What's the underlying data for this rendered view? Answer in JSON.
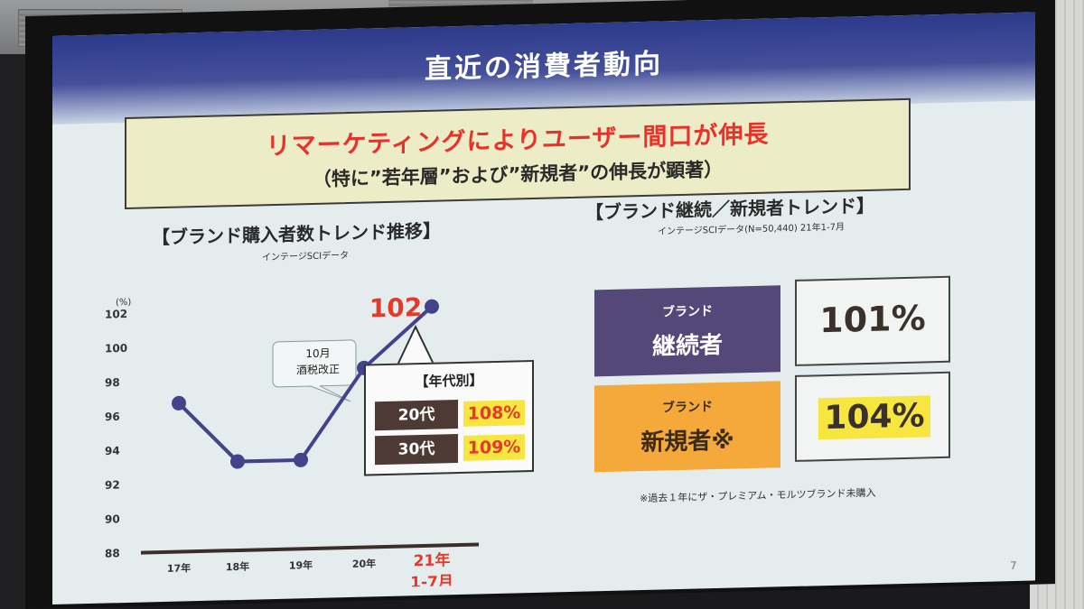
{
  "slide": {
    "title": "直近の消費者動向",
    "banner": {
      "main": "リマーケティングによりユーザー間口が伸長",
      "sub": "（特に”若年層”および”新規者”の伸長が顕著）"
    },
    "left": {
      "heading": "【ブランド購入者数トレンド推移】",
      "source": "インテージSCIデータ"
    },
    "right": {
      "heading": "【ブランド継続／新規者トレンド】",
      "source": "インテージSCIデータ(N=50,440) 21年1-7月",
      "continuing": {
        "small": "ブランド",
        "big": "継続者",
        "value": "101%"
      },
      "new": {
        "small": "ブランド",
        "big": "新規者※",
        "value": "104%"
      },
      "footnote": "※過去１年にザ・プレミアム・モルツブランド未購入"
    },
    "callout": {
      "title": "【年代別】",
      "rows": [
        {
          "age": "20代",
          "value": "108%"
        },
        {
          "age": "30代",
          "value": "109%"
        }
      ]
    },
    "page_number": "7"
  },
  "chart_data": {
    "type": "line",
    "unit_label": "(%)",
    "categories": [
      "17年",
      "18年",
      "19年",
      "20年",
      "21年\n1-7月"
    ],
    "values": [
      96.7,
      93.2,
      93.2,
      98.5,
      102.0
    ],
    "ylim": [
      88,
      102
    ],
    "yticks": [
      88,
      90,
      92,
      94,
      96,
      98,
      100,
      102
    ],
    "end_label": "102",
    "annotation": "10月\n酒税改正",
    "colors": {
      "line": "#45428c",
      "highlight": "#e33a2c",
      "axis": "#3b2e2a"
    }
  }
}
